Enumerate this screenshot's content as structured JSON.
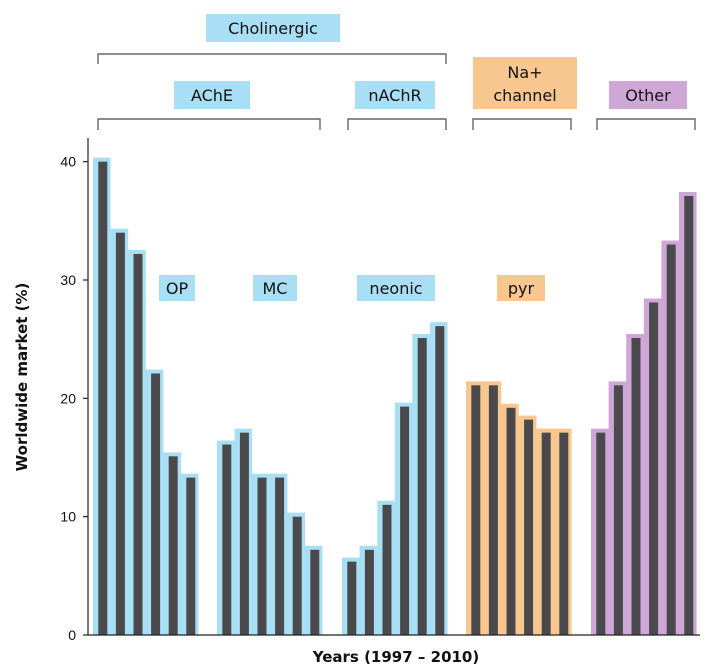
{
  "chart_data": {
    "type": "bar",
    "title": "",
    "xlabel": "Years (1997 – 2010)",
    "ylabel": "Worldwide market (%)",
    "ylim": [
      0,
      42
    ],
    "yticks": [
      "0",
      "10",
      "20",
      "30",
      "40"
    ],
    "colors": {
      "bar_fill": "#4a4a4d",
      "cholinergic": "#a9dff5",
      "na_channel": "#f8c78f",
      "other": "#cfa7d6"
    },
    "categories_header": {
      "cholinergic": "Cholinergic",
      "ache": "AChE",
      "nachr": "nAChR",
      "na_channel": [
        "Na+",
        "channel"
      ],
      "other": "Other"
    },
    "series": [
      {
        "name": "OP",
        "group": "cholinergic",
        "values": [
          40,
          34,
          32.2,
          22.1,
          15.1,
          13.3
        ]
      },
      {
        "name": "MC",
        "group": "cholinergic",
        "values": [
          16.1,
          17.1,
          13.3,
          13.3,
          10,
          7.2
        ]
      },
      {
        "name": "neonic",
        "group": "cholinergic",
        "values": [
          6.2,
          7.2,
          11,
          19.3,
          25.1,
          26.1
        ]
      },
      {
        "name": "pyr",
        "group": "na_channel",
        "values": [
          21.1,
          21.1,
          19.2,
          18.2,
          17.1,
          17.1
        ]
      },
      {
        "name": "",
        "group": "other",
        "values": [
          17.1,
          21.1,
          25.1,
          28.1,
          33,
          37.1
        ]
      }
    ]
  }
}
